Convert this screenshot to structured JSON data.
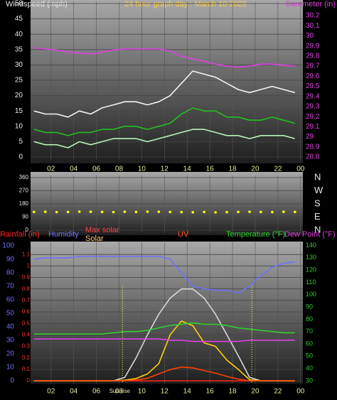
{
  "chart_data": [
    {
      "type": "line",
      "title": "24 hour graph day : March 10 2026",
      "ylabel": "Windspeed (mph)",
      "y2label": "Barometer (in)",
      "x": [
        0.5,
        1.5,
        2.5,
        3.5,
        4.5,
        5.5,
        6.5,
        7.5,
        8.5,
        9.5,
        10.5,
        11.5,
        12.5,
        13.5,
        14.5,
        15.5,
        16.5,
        17.5,
        18.5,
        19.5,
        20.5,
        21.5,
        22.5,
        23.5
      ],
      "xlim": [
        0.2,
        24.2
      ],
      "xticks": [
        {
          "value": 2,
          "label": "02"
        },
        {
          "value": 4,
          "label": "04"
        },
        {
          "value": 6,
          "label": "06"
        },
        {
          "value": 8,
          "label": "08"
        },
        10,
        12,
        14,
        16,
        18,
        20,
        22,
        {
          "value": 24,
          "label": "00"
        }
      ],
      "ylim": [
        0,
        50
      ],
      "yticks": [
        0,
        5,
        10,
        15,
        20,
        25,
        30,
        35,
        40,
        45,
        50
      ],
      "y2lim": [
        28.8,
        30.32
      ],
      "y2ticks": [
        28.8,
        28.9,
        29,
        29.1,
        29.2,
        29.3,
        29.4,
        29.5,
        29.6,
        29.7,
        29.8,
        29.9,
        30,
        30.1,
        30.2
      ],
      "grid": true,
      "series": [
        {
          "color": "#f2f2f2",
          "values": [
            15,
            14,
            14,
            13,
            15,
            14,
            16,
            17,
            18,
            18,
            17,
            18,
            20,
            24,
            28,
            27,
            26,
            24,
            22,
            21,
            22,
            23,
            22,
            21
          ]
        },
        {
          "color": "#b8f2b8",
          "values": [
            5,
            4,
            4,
            3,
            5,
            4,
            5,
            6,
            6,
            6,
            5,
            6,
            7,
            8,
            9,
            9,
            8,
            7,
            7,
            6,
            7,
            7,
            7,
            6
          ]
        },
        {
          "color": "#20c020",
          "values": [
            9,
            8,
            8,
            7,
            8,
            8,
            9,
            9,
            10,
            10,
            9,
            10,
            11,
            14,
            16,
            15,
            15,
            13,
            13,
            12,
            12,
            13,
            12,
            11
          ]
        },
        {
          "color": "#e040e0",
          "axis": "y2",
          "values": [
            29.88,
            29.87,
            29.86,
            29.84,
            29.83,
            29.82,
            29.84,
            29.86,
            29.87,
            29.87,
            29.87,
            29.87,
            29.85,
            29.8,
            29.77,
            29.75,
            29.72,
            29.7,
            29.69,
            29.7,
            29.72,
            29.72,
            29.71,
            29.7
          ]
        }
      ]
    },
    {
      "type": "scatter",
      "x": [
        0.5,
        1.5,
        2.5,
        3.5,
        4.5,
        5.5,
        6.5,
        7.5,
        8.5,
        9.5,
        10.5,
        11.5,
        12.5,
        13.5,
        14.5,
        15.5,
        16.5,
        17.5,
        18.5,
        19.5,
        20.5,
        21.5,
        22.5,
        23.5
      ],
      "xlim": [
        0.2,
        24.2
      ],
      "xticks": [
        2,
        4,
        6,
        8,
        10,
        12,
        14,
        16,
        18,
        20,
        22,
        24
      ],
      "ylim": [
        0,
        360
      ],
      "yticks": [
        0,
        90,
        180,
        270,
        360
      ],
      "y2lim": [
        0,
        360
      ],
      "y2ticks": [
        {
          "value": 0,
          "label": "N"
        },
        {
          "value": 90,
          "label": "E"
        },
        {
          "value": 180,
          "label": "S"
        },
        {
          "value": 270,
          "label": "W"
        },
        {
          "value": 360,
          "label": "N"
        }
      ],
      "grid": true,
      "series": [
        {
          "color": "#ffff00",
          "values": [
            125,
            126,
            124,
            125,
            127,
            126,
            125,
            124,
            126,
            125,
            127,
            126,
            125,
            124,
            123,
            125,
            122,
            124,
            125,
            126,
            125,
            124,
            126,
            125
          ]
        }
      ]
    },
    {
      "type": "line",
      "x": [
        0.5,
        1.5,
        2.5,
        3.5,
        4.5,
        5.5,
        6.5,
        7.5,
        8.5,
        9.5,
        10.5,
        11.5,
        12.5,
        13.5,
        14.5,
        15.5,
        16.5,
        17.5,
        18.5,
        19.5,
        20.5,
        21.5,
        22.5,
        23.5
      ],
      "xlim": [
        0.2,
        24.2
      ],
      "xticks": [
        {
          "value": 2,
          "label": "02"
        },
        {
          "value": 4,
          "label": "04"
        },
        {
          "value": 6,
          "label": "06"
        },
        {
          "value": 8,
          "label": "08"
        },
        10,
        12,
        14,
        16,
        18,
        20,
        22,
        {
          "value": 24,
          "label": "00"
        }
      ],
      "ylim": [
        0,
        1.2
      ],
      "yticks": [
        0,
        0.1,
        0.2,
        0.3,
        0.4,
        0.5,
        0.6,
        0.7,
        0.8,
        0.9,
        1,
        1.1
      ],
      "y2lim": [
        30,
        142
      ],
      "y2ticks": [
        30,
        40,
        50,
        60,
        70,
        80,
        90,
        100,
        110,
        120,
        130,
        140
      ],
      "y3lim": [
        0,
        102
      ],
      "y3ticks": [
        0,
        10,
        20,
        30,
        40,
        50,
        60,
        70,
        80,
        90,
        100
      ],
      "y4lim": [
        0,
        1200
      ],
      "y5lim": [
        0,
        16
      ],
      "grid": true,
      "sunrise": 8.3,
      "sunrise_label": "Sun rise",
      "sunset": 19.7,
      "series": [
        {
          "name": "Rainfall (in)",
          "color": "#ff2020",
          "values": [
            0,
            0,
            0,
            0,
            0,
            0,
            0,
            0,
            0,
            0,
            0,
            0,
            0,
            0,
            0,
            0,
            0,
            0,
            0,
            0,
            0,
            0,
            0,
            0
          ]
        },
        {
          "name": "Humidity",
          "color": "#7070ff",
          "axis": "y3",
          "values": [
            90,
            91,
            91,
            91,
            92,
            92,
            92,
            92,
            92,
            92,
            92,
            92,
            90,
            80,
            70,
            68,
            67,
            67,
            65,
            70,
            78,
            84,
            87,
            88
          ]
        },
        {
          "name": "Max solar",
          "color": "#d8d8d8",
          "axis": "y4",
          "values": [
            0,
            0,
            0,
            0,
            0,
            0,
            0,
            0,
            30,
            200,
            400,
            580,
            720,
            800,
            800,
            720,
            580,
            400,
            220,
            30,
            0,
            0,
            0,
            0
          ]
        },
        {
          "name": "Solar",
          "color": "#ffd000",
          "axis": "y4",
          "values": [
            0,
            0,
            0,
            0,
            0,
            0,
            0,
            0,
            5,
            20,
            60,
            150,
            400,
            520,
            480,
            330,
            300,
            180,
            100,
            10,
            0,
            0,
            0,
            0
          ]
        },
        {
          "name": "UV",
          "color": "#ff4000",
          "axis": "y5",
          "values": [
            0,
            0,
            0,
            0,
            0,
            0,
            0,
            0,
            0,
            0.1,
            0.3,
            0.8,
            1.3,
            1.6,
            1.5,
            1.2,
            0.9,
            0.5,
            0.2,
            0,
            0,
            0,
            0,
            0
          ]
        },
        {
          "name": "Temperature (°F)",
          "color": "#30d030",
          "axis": "y2",
          "values": [
            68,
            68,
            68,
            68,
            68,
            68,
            68,
            69,
            70,
            70,
            71,
            73,
            75,
            76,
            77,
            76,
            76,
            75,
            73,
            72,
            71,
            70,
            69,
            69
          ]
        },
        {
          "name": "Dew Point (°F)",
          "color": "#e040e0",
          "axis": "y2",
          "values": [
            64,
            64,
            64,
            64,
            64,
            64,
            64,
            64,
            64,
            64,
            64,
            64,
            63,
            63,
            62,
            62,
            62,
            62,
            62,
            63,
            63,
            63,
            63,
            63
          ]
        }
      ]
    }
  ]
}
